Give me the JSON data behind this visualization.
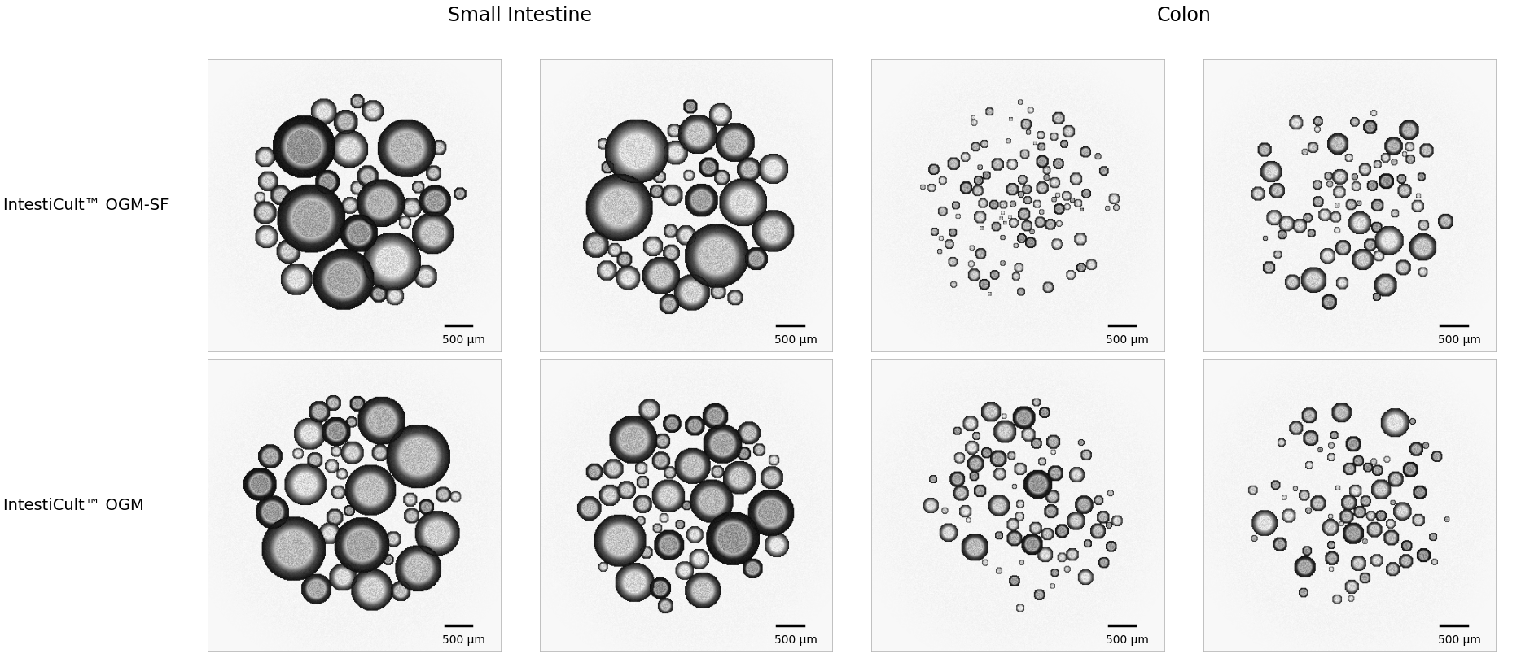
{
  "row_labels": [
    "IntestiCult™ OGM-SF",
    "IntestiCult™ OGM"
  ],
  "col_group_labels": [
    "Small Intestine",
    "Colon"
  ],
  "scale_bar_text": "500 μm",
  "background_color": "#ffffff",
  "title_fontsize": 17,
  "label_fontsize": 14,
  "scalebar_fontsize": 10,
  "figsize": [
    18.68,
    8.09
  ],
  "dpi": 100,
  "grid_rows": 2,
  "grid_cols": 4
}
